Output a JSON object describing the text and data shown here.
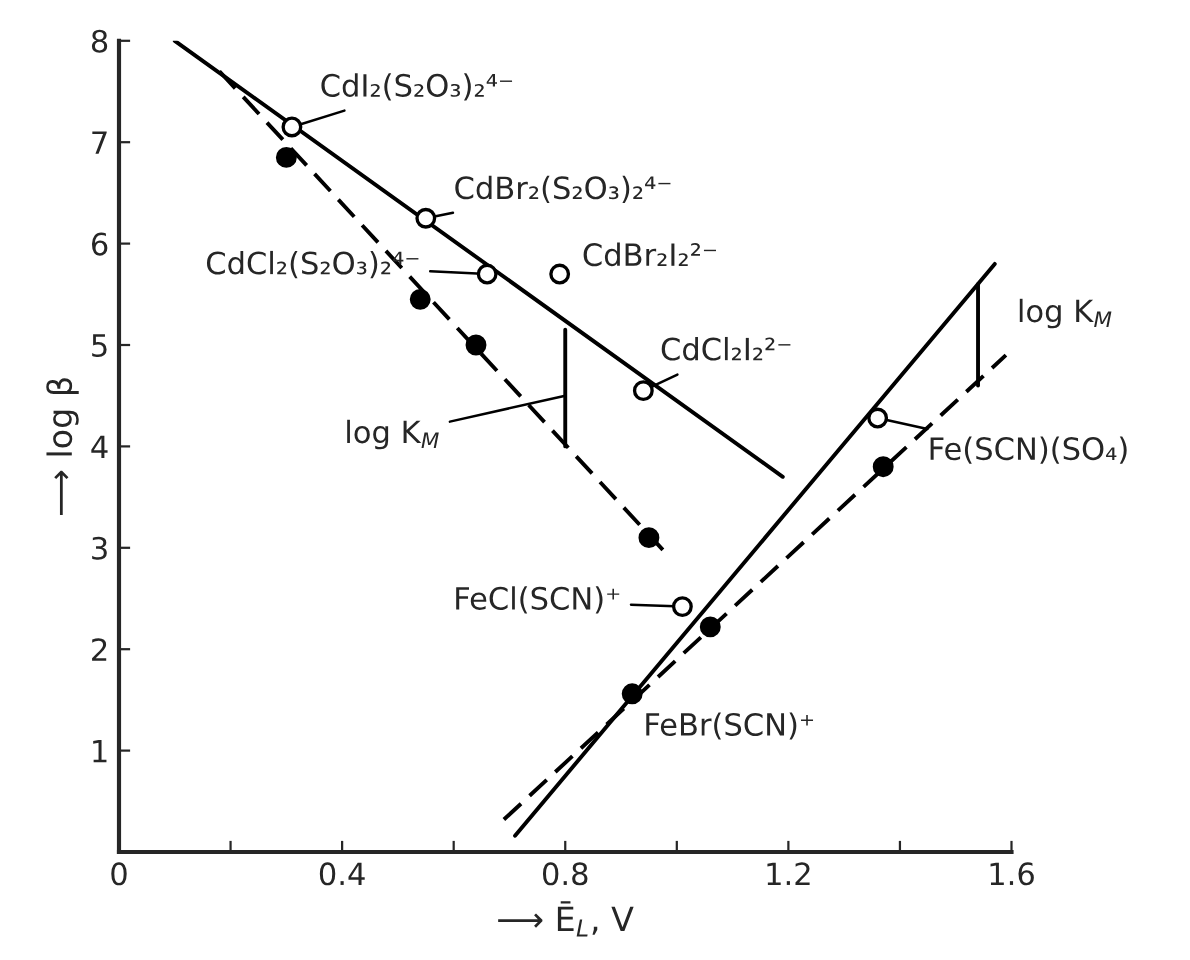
{
  "chart_data": {
    "type": "scatter",
    "xlabel": "⟶ Ē$_{L}$, V",
    "ylabel": "⟶ log β",
    "xlim": [
      0,
      1.6
    ],
    "ylim": [
      0,
      8
    ],
    "xticks": [
      0,
      {
        "value": 0.2,
        "label": null
      },
      0.4,
      {
        "value": 0.6,
        "label": null
      },
      0.8,
      {
        "value": 1.0,
        "label": null
      },
      1.2,
      {
        "value": 1.4,
        "label": null
      },
      1.6
    ],
    "yticks": [
      1,
      2,
      3,
      4,
      5,
      6,
      7,
      8
    ],
    "grid": false,
    "series": [
      {
        "type": "line",
        "color": "#000000",
        "line_style": "solid",
        "x": [
          0.1,
          1.19
        ],
        "values": [
          8.0,
          3.7
        ]
      },
      {
        "type": "line",
        "color": "#000000",
        "line_style": "dashed",
        "x": [
          0.18,
          0.975
        ],
        "values": [
          7.7,
          2.98
        ]
      },
      {
        "type": "line",
        "color": "#000000",
        "line_style": "solid",
        "x": [
          0.71,
          1.57
        ],
        "values": [
          0.16,
          5.8
        ]
      },
      {
        "type": "line",
        "color": "#000000",
        "line_style": "dashed",
        "x": [
          0.69,
          1.59
        ],
        "values": [
          0.32,
          4.9
        ]
      },
      {
        "type": "line",
        "color": "#000000",
        "line_style": "solid",
        "x": [
          0.8,
          0.8
        ],
        "values": [
          5.15,
          4.0
        ]
      },
      {
        "type": "line",
        "color": "#000000",
        "line_style": "solid",
        "x": [
          1.54,
          1.54
        ],
        "values": [
          5.6,
          4.6
        ]
      },
      {
        "marker": "circle",
        "color": "#ffffff",
        "x": [
          0.31,
          0.55,
          0.66,
          0.79,
          0.94
        ],
        "values": [
          7.15,
          6.25,
          5.7,
          5.7,
          4.55
        ]
      },
      {
        "marker": "circle",
        "color": "#000000",
        "x": [
          0.3,
          0.54,
          0.64,
          0.95
        ],
        "values": [
          6.85,
          5.45,
          5.0,
          3.1
        ]
      },
      {
        "marker": "circle",
        "color": "#ffffff",
        "x": [
          1.01,
          1.36
        ],
        "values": [
          2.42,
          4.28
        ]
      },
      {
        "marker": "circle",
        "color": "#000000",
        "x": [
          0.92,
          1.06,
          1.37
        ],
        "values": [
          1.56,
          2.22,
          3.8
        ]
      }
    ],
    "annotations": [
      {
        "text": "CdI₂(S₂O₃)₂⁴⁻",
        "x": 0.31,
        "y": 7.15
      },
      {
        "text": "CdBr₂(S₂O₃)₂⁴⁻",
        "x": 0.55,
        "y": 6.25
      },
      {
        "text": "CdCl₂(S₂O₃)₂⁴⁻",
        "x": 0.66,
        "y": 5.7
      },
      {
        "text": "CdBr₂I₂²⁻",
        "x": 0.79,
        "y": 5.7
      },
      {
        "text": "CdCl₂I₂²⁻",
        "x": 0.94,
        "y": 4.55
      },
      {
        "text": "log K$_{M}$",
        "x": 0.8,
        "y": 4.5
      },
      {
        "text": "log K$_{M}$",
        "x": 1.54,
        "y": 5.2
      },
      {
        "text": "Fe(SCN)(SO₄)",
        "x": 1.36,
        "y": 4.28
      },
      {
        "text": "FeCl(SCN)⁺",
        "x": 1.01,
        "y": 2.42
      },
      {
        "text": "FeBr(SCN)⁺",
        "x": 0.92,
        "y": 1.56
      }
    ]
  }
}
